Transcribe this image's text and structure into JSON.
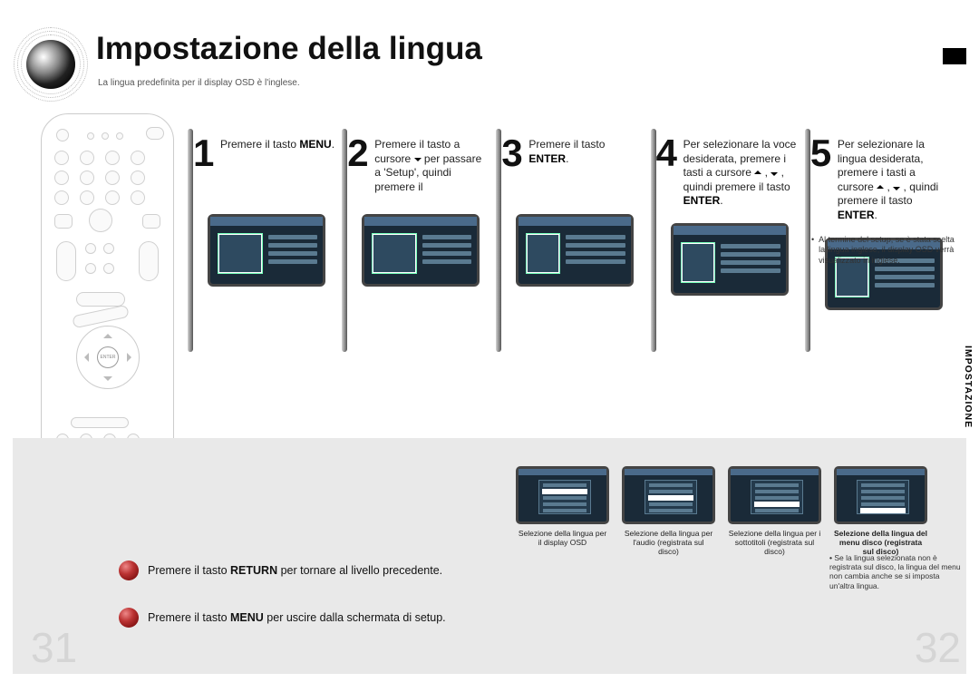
{
  "title": "Impostazione della lingua",
  "subtitle": "La lingua predefinita per il display OSD è l'inglese.",
  "side_tab": "IMPOSTAZIONE",
  "black_tab_color": "#000000",
  "steps": [
    {
      "num": "1",
      "html": "Premere il tasto <b>MENU</b>."
    },
    {
      "num": "2",
      "html": "Premere il tasto a cursore <span class='tri-down'></span> per passare a 'Setup', quindi premere il"
    },
    {
      "num": "3",
      "html": "Premere il tasto <b>ENTER</b>."
    },
    {
      "num": "4",
      "html": "Per selezionare la voce desiderata, premere i tasti a cursore <span class='tri-up'></span> , <span class='tri-down'></span> , quindi premere il tasto <b>ENTER</b>."
    },
    {
      "num": "5",
      "html": "Per selezionare la lingua desiderata, premere i tasti a cursore <span class='tri-up'></span> , <span class='tri-down'></span> , quindi premere il tasto <b>ENTER</b>."
    }
  ],
  "note_right": "Al termine del setup, se è stata scelta la lingua inglese, il display OSD verrà visualizzato in inglese.",
  "instructions": [
    {
      "html": "Premere il tasto <b>RETURN</b> per tornare al livello precedente."
    },
    {
      "html": "Premere il tasto <b>MENU</b> per uscire dalla schermata di setup."
    }
  ],
  "bottom_screens": [
    {
      "caption": "Selezione della lingua per il display OSD",
      "bold": false
    },
    {
      "caption": "Selezione della lingua per l'audio (registrata sul disco)",
      "bold": false
    },
    {
      "caption": "Selezione della lingua per i sottotitoli (registrata sul disco)",
      "bold": false
    },
    {
      "caption": "Selezione della lingua del menu disco (registrata sul disco)",
      "bold": true
    }
  ],
  "footnote_br": "Se la lingua selezionata non è registrata sul disco, la lingua del menu non cambia anche se si imposta un'altra lingua.",
  "page_left": "31",
  "page_right": "32",
  "remote": {
    "enter_label": "ENTER"
  },
  "colors": {
    "band": "#e9e9e9",
    "screen_bg": "#1a2a38",
    "screen_border": "#444444",
    "pagenum": "#d5d5d5"
  }
}
